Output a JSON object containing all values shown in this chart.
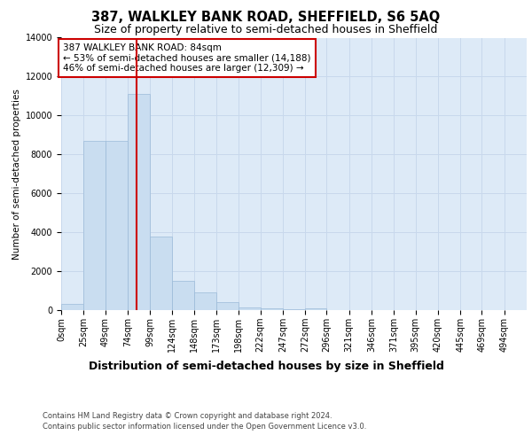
{
  "title": "387, WALKLEY BANK ROAD, SHEFFIELD, S6 5AQ",
  "subtitle": "Size of property relative to semi-detached houses in Sheffield",
  "xlabel": "Distribution of semi-detached houses by size in Sheffield",
  "ylabel": "Number of semi-detached properties",
  "footer_line1": "Contains HM Land Registry data © Crown copyright and database right 2024.",
  "footer_line2": "Contains public sector information licensed under the Open Government Licence v3.0.",
  "bin_labels": [
    "0sqm",
    "25sqm",
    "49sqm",
    "74sqm",
    "99sqm",
    "124sqm",
    "148sqm",
    "173sqm",
    "198sqm",
    "222sqm",
    "247sqm",
    "272sqm",
    "296sqm",
    "321sqm",
    "346sqm",
    "371sqm",
    "395sqm",
    "420sqm",
    "445sqm",
    "469sqm",
    "494sqm"
  ],
  "bin_edges": [
    0,
    25,
    49,
    74,
    99,
    124,
    148,
    173,
    198,
    222,
    247,
    272,
    296,
    321,
    346,
    371,
    395,
    420,
    445,
    469,
    494,
    519
  ],
  "bar_heights": [
    300,
    8700,
    8700,
    11100,
    3800,
    1500,
    900,
    400,
    150,
    80,
    30,
    100,
    0,
    0,
    0,
    0,
    0,
    0,
    0,
    0,
    0
  ],
  "bar_color": "#c9ddf0",
  "bar_edge_color": "#9bbad8",
  "grid_color": "#c8d8ec",
  "property_size": 84,
  "vline_color": "#cc0000",
  "annotation_line1": "387 WALKLEY BANK ROAD: 84sqm",
  "annotation_line2": "← 53% of semi-detached houses are smaller (14,188)",
  "annotation_line3": "46% of semi-detached houses are larger (12,309) →",
  "annotation_box_edgecolor": "#cc0000",
  "ylim": [
    0,
    14000
  ],
  "yticks": [
    0,
    2000,
    4000,
    6000,
    8000,
    10000,
    12000,
    14000
  ],
  "background_color": "#ddeaf7",
  "title_fontsize": 10.5,
  "subtitle_fontsize": 9,
  "xlabel_fontsize": 9,
  "ylabel_fontsize": 7.5,
  "tick_fontsize": 7,
  "annotation_fontsize": 7.5,
  "footer_fontsize": 6
}
